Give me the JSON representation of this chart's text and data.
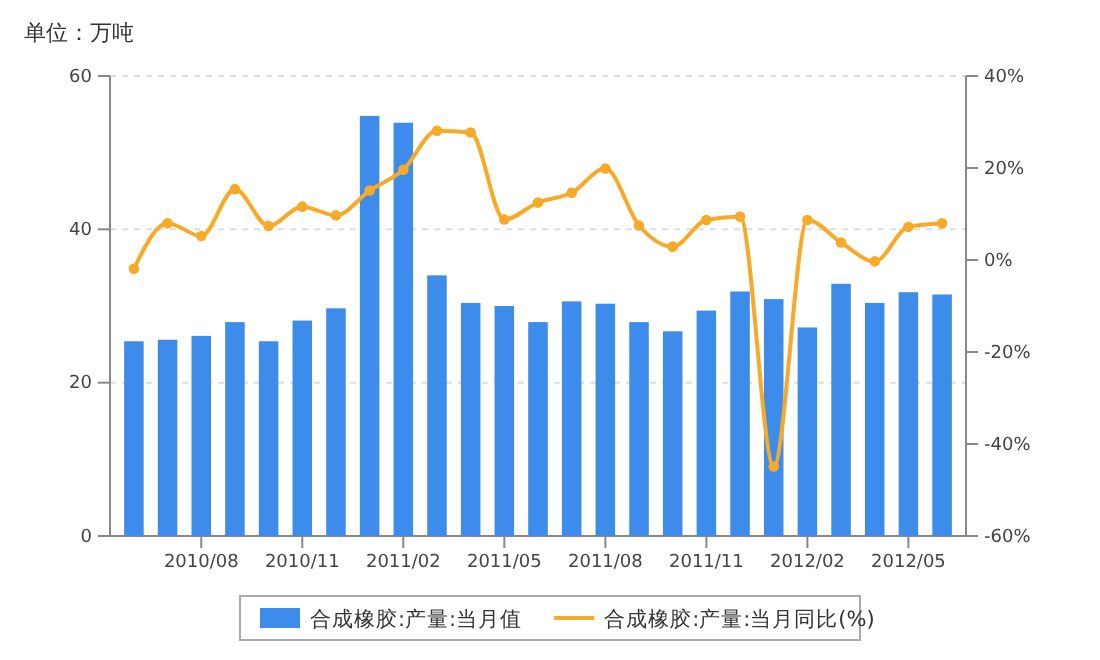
{
  "chart_data": {
    "type": "bar",
    "annotations": [
      "单位：万吨"
    ],
    "categories": [
      null,
      null,
      "2010/08",
      null,
      null,
      "2010/11",
      null,
      null,
      "2011/02",
      null,
      null,
      "2011/05",
      null,
      null,
      "2011/08",
      null,
      null,
      "2011/11",
      null,
      null,
      "2012/02",
      null,
      null,
      "2012/05",
      null
    ],
    "series": [
      {
        "name": "合成橡胶:产量:当月值",
        "color": "#3d8bea",
        "values": [
          25.4,
          25.6,
          26.1,
          27.9,
          25.4,
          28.1,
          29.7,
          54.8,
          53.9,
          34.0,
          30.4,
          30.0,
          27.9,
          30.6,
          30.3,
          27.9,
          26.7,
          29.4,
          31.9,
          30.9,
          27.2,
          32.9,
          30.4,
          31.8,
          31.5
        ]
      },
      {
        "name": "合成橡胶:产量:当月同比(%)",
        "type": "line",
        "axis": "y2",
        "color": "#f7a928",
        "marker": "circle",
        "values": [
          -1.9,
          8.0,
          5.2,
          15.4,
          7.4,
          11.6,
          9.7,
          15.1,
          19.6,
          28.1,
          27.7,
          8.8,
          12.5,
          14.6,
          19.9,
          7.5,
          2.9,
          8.7,
          9.4,
          -44.9,
          8.7,
          3.8,
          -0.3,
          7.2,
          8.0
        ]
      }
    ],
    "ylim": [
      0,
      60
    ],
    "yticks": [
      0,
      20,
      40,
      60
    ],
    "y2lim": [
      -60,
      40
    ],
    "y2ticks": [
      {
        "value": -60,
        "label": "-60%"
      },
      {
        "value": -40,
        "label": "-40%"
      },
      {
        "value": -20,
        "label": "-20%"
      },
      {
        "value": 0,
        "label": "0%"
      },
      {
        "value": 20,
        "label": "20%"
      },
      {
        "value": 40,
        "label": "40%"
      }
    ],
    "grid": "y",
    "legend": "bottom"
  }
}
